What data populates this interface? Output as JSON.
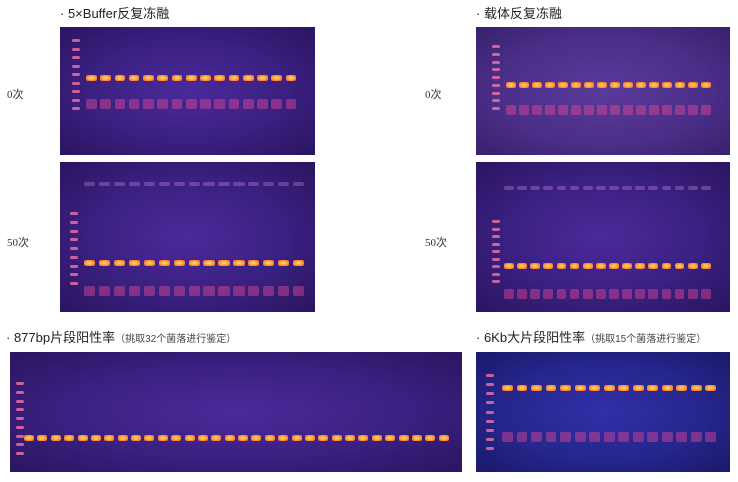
{
  "panels": [
    {
      "title": "5×Buffer反复冻融",
      "gels": [
        {
          "label": "0次",
          "lanes": 15
        },
        {
          "label": "50次",
          "lanes": 15
        }
      ]
    },
    {
      "title": "载体反复冻融",
      "gels": [
        {
          "label": "0次",
          "lanes": 16
        },
        {
          "label": "50次",
          "lanes": 16
        }
      ]
    },
    {
      "title": "877bp片段阳性率",
      "note": "（挑取32个菌落进行鉴定）",
      "gels": [
        {
          "lanes": 32
        }
      ]
    },
    {
      "title": "6Kb大片段阳性率",
      "note": "（挑取15个菌落进行鉴定）",
      "gels": [
        {
          "lanes": 15
        }
      ]
    }
  ],
  "colors": {
    "band": "#ffb040",
    "smear": "#e0408a",
    "gel": "#3a2080"
  }
}
